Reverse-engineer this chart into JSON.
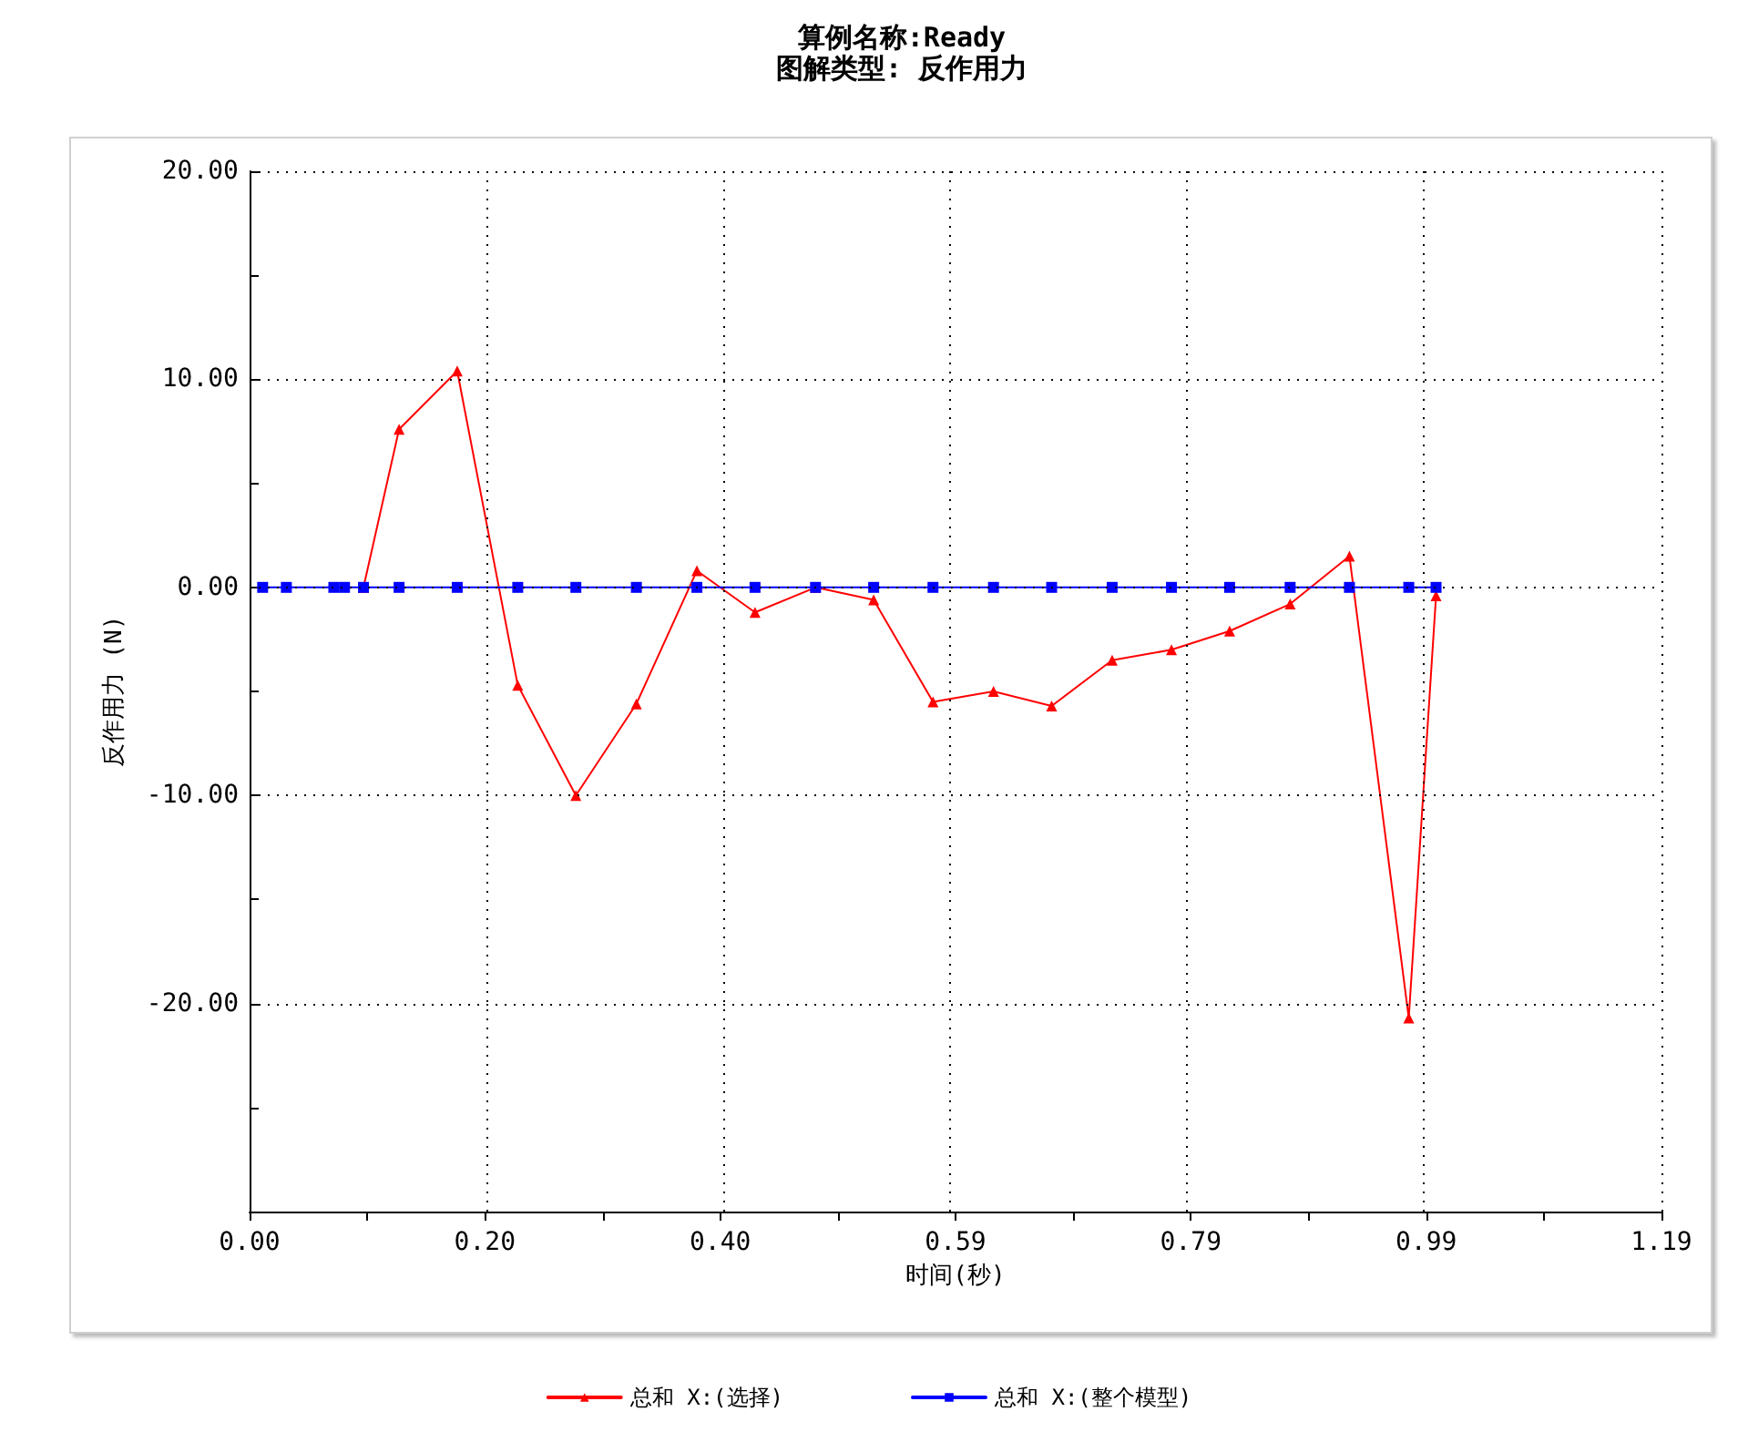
{
  "chart_data": {
    "type": "line",
    "title": "算例名称:Ready",
    "subtitle": "图解类型: 反作用力",
    "xlabel": "时间(秒)",
    "ylabel": "反作用力 (N)",
    "xlim": [
      0,
      1.19
    ],
    "ylim": [
      -30,
      20
    ],
    "xticks": [
      {
        "value": 0,
        "label": "0.00"
      },
      {
        "value": 0.0992,
        "label": null
      },
      {
        "value": 0.1983,
        "label": "0.20"
      },
      {
        "value": 0.2975,
        "label": null
      },
      {
        "value": 0.3967,
        "label": "0.40"
      },
      {
        "value": 0.4958,
        "label": null
      },
      {
        "value": 0.595,
        "label": "0.59"
      },
      {
        "value": 0.6942,
        "label": null
      },
      {
        "value": 0.7933,
        "label": "0.79"
      },
      {
        "value": 0.8925,
        "label": null
      },
      {
        "value": 0.9917,
        "label": "0.99"
      },
      {
        "value": 1.0908,
        "label": null
      },
      {
        "value": 1.19,
        "label": "1.19"
      }
    ],
    "yticks": [
      {
        "value": 20,
        "label": "20.00"
      },
      {
        "value": 15,
        "label": null
      },
      {
        "value": 10,
        "label": "10.00"
      },
      {
        "value": 5,
        "label": null
      },
      {
        "value": 0,
        "label": "0.00"
      },
      {
        "value": -5,
        "label": null
      },
      {
        "value": -10,
        "label": "-10.00"
      },
      {
        "value": -15,
        "label": null
      },
      {
        "value": -20,
        "label": "-20.00"
      },
      {
        "value": -25,
        "label": null
      },
      {
        "value": -30,
        "label": null
      }
    ],
    "grid": true,
    "legend": "bottom",
    "line_style": "solid",
    "series": [
      {
        "name": "总和 X:(选择)",
        "color": "#ff0000",
        "marker": "triangle",
        "x": [
          0.096,
          0.126,
          0.175,
          0.226,
          0.275,
          0.326,
          0.377,
          0.426,
          0.477,
          0.526,
          0.576,
          0.627,
          0.676,
          0.727,
          0.777,
          0.826,
          0.877,
          0.927,
          0.977,
          1.0
        ],
        "values": [
          0,
          7.6,
          10.4,
          -4.7,
          -10.0,
          -5.6,
          0.8,
          -1.2,
          0,
          -0.6,
          -5.5,
          -5.0,
          -5.7,
          -3.5,
          -3.0,
          -2.1,
          -0.8,
          1.5,
          -20.7,
          -0.4
        ]
      },
      {
        "name": "总和 X:(整个模型)",
        "color": "#0000ff",
        "marker": "square",
        "x": [
          0.011,
          0.031,
          0.071,
          0.08,
          0.096,
          0.126,
          0.175,
          0.226,
          0.275,
          0.326,
          0.377,
          0.426,
          0.477,
          0.526,
          0.576,
          0.627,
          0.676,
          0.727,
          0.777,
          0.826,
          0.877,
          0.927,
          0.977,
          1.0
        ],
        "values": [
          0,
          0,
          0,
          0,
          0,
          0,
          0,
          0,
          0,
          0,
          0,
          0,
          0,
          0,
          0,
          0,
          0,
          0,
          0,
          0,
          0,
          0,
          0,
          0
        ]
      }
    ]
  }
}
